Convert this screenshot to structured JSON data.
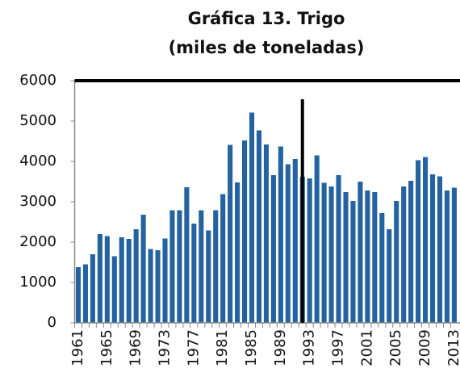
{
  "chart_data": {
    "type": "bar",
    "title": "Gráfica 13. Trigo",
    "subtitle": "(miles de toneladas)",
    "categories": [
      "1961",
      null,
      null,
      null,
      "1965",
      null,
      null,
      null,
      "1969",
      null,
      null,
      null,
      "1973",
      null,
      null,
      null,
      "1977",
      null,
      null,
      null,
      "1981",
      null,
      null,
      null,
      "1985",
      null,
      null,
      null,
      "1989",
      null,
      null,
      null,
      "1993",
      null,
      null,
      null,
      "1997",
      null,
      null,
      null,
      "2001",
      null,
      null,
      null,
      "2005",
      null,
      null,
      null,
      "2009",
      null,
      null,
      null,
      "2013"
    ],
    "values": [
      1380,
      1450,
      1700,
      2200,
      2150,
      1650,
      2120,
      2080,
      2320,
      2680,
      1830,
      1800,
      2090,
      2790,
      2790,
      3360,
      2460,
      2790,
      2290,
      2790,
      3190,
      4410,
      3480,
      4520,
      5210,
      4770,
      4420,
      3660,
      4370,
      3930,
      4060,
      3620,
      3580,
      4150,
      3470,
      3380,
      3660,
      3240,
      3020,
      3500,
      3280,
      3240,
      2720,
      2320,
      3020,
      3380,
      3520,
      4030,
      4110,
      3680,
      3630,
      3280,
      3350
    ],
    "color": "#2462a0",
    "ylim": [
      0,
      6000
    ],
    "yticks": [
      0,
      1000,
      2000,
      3000,
      4000,
      5000,
      6000
    ]
  }
}
